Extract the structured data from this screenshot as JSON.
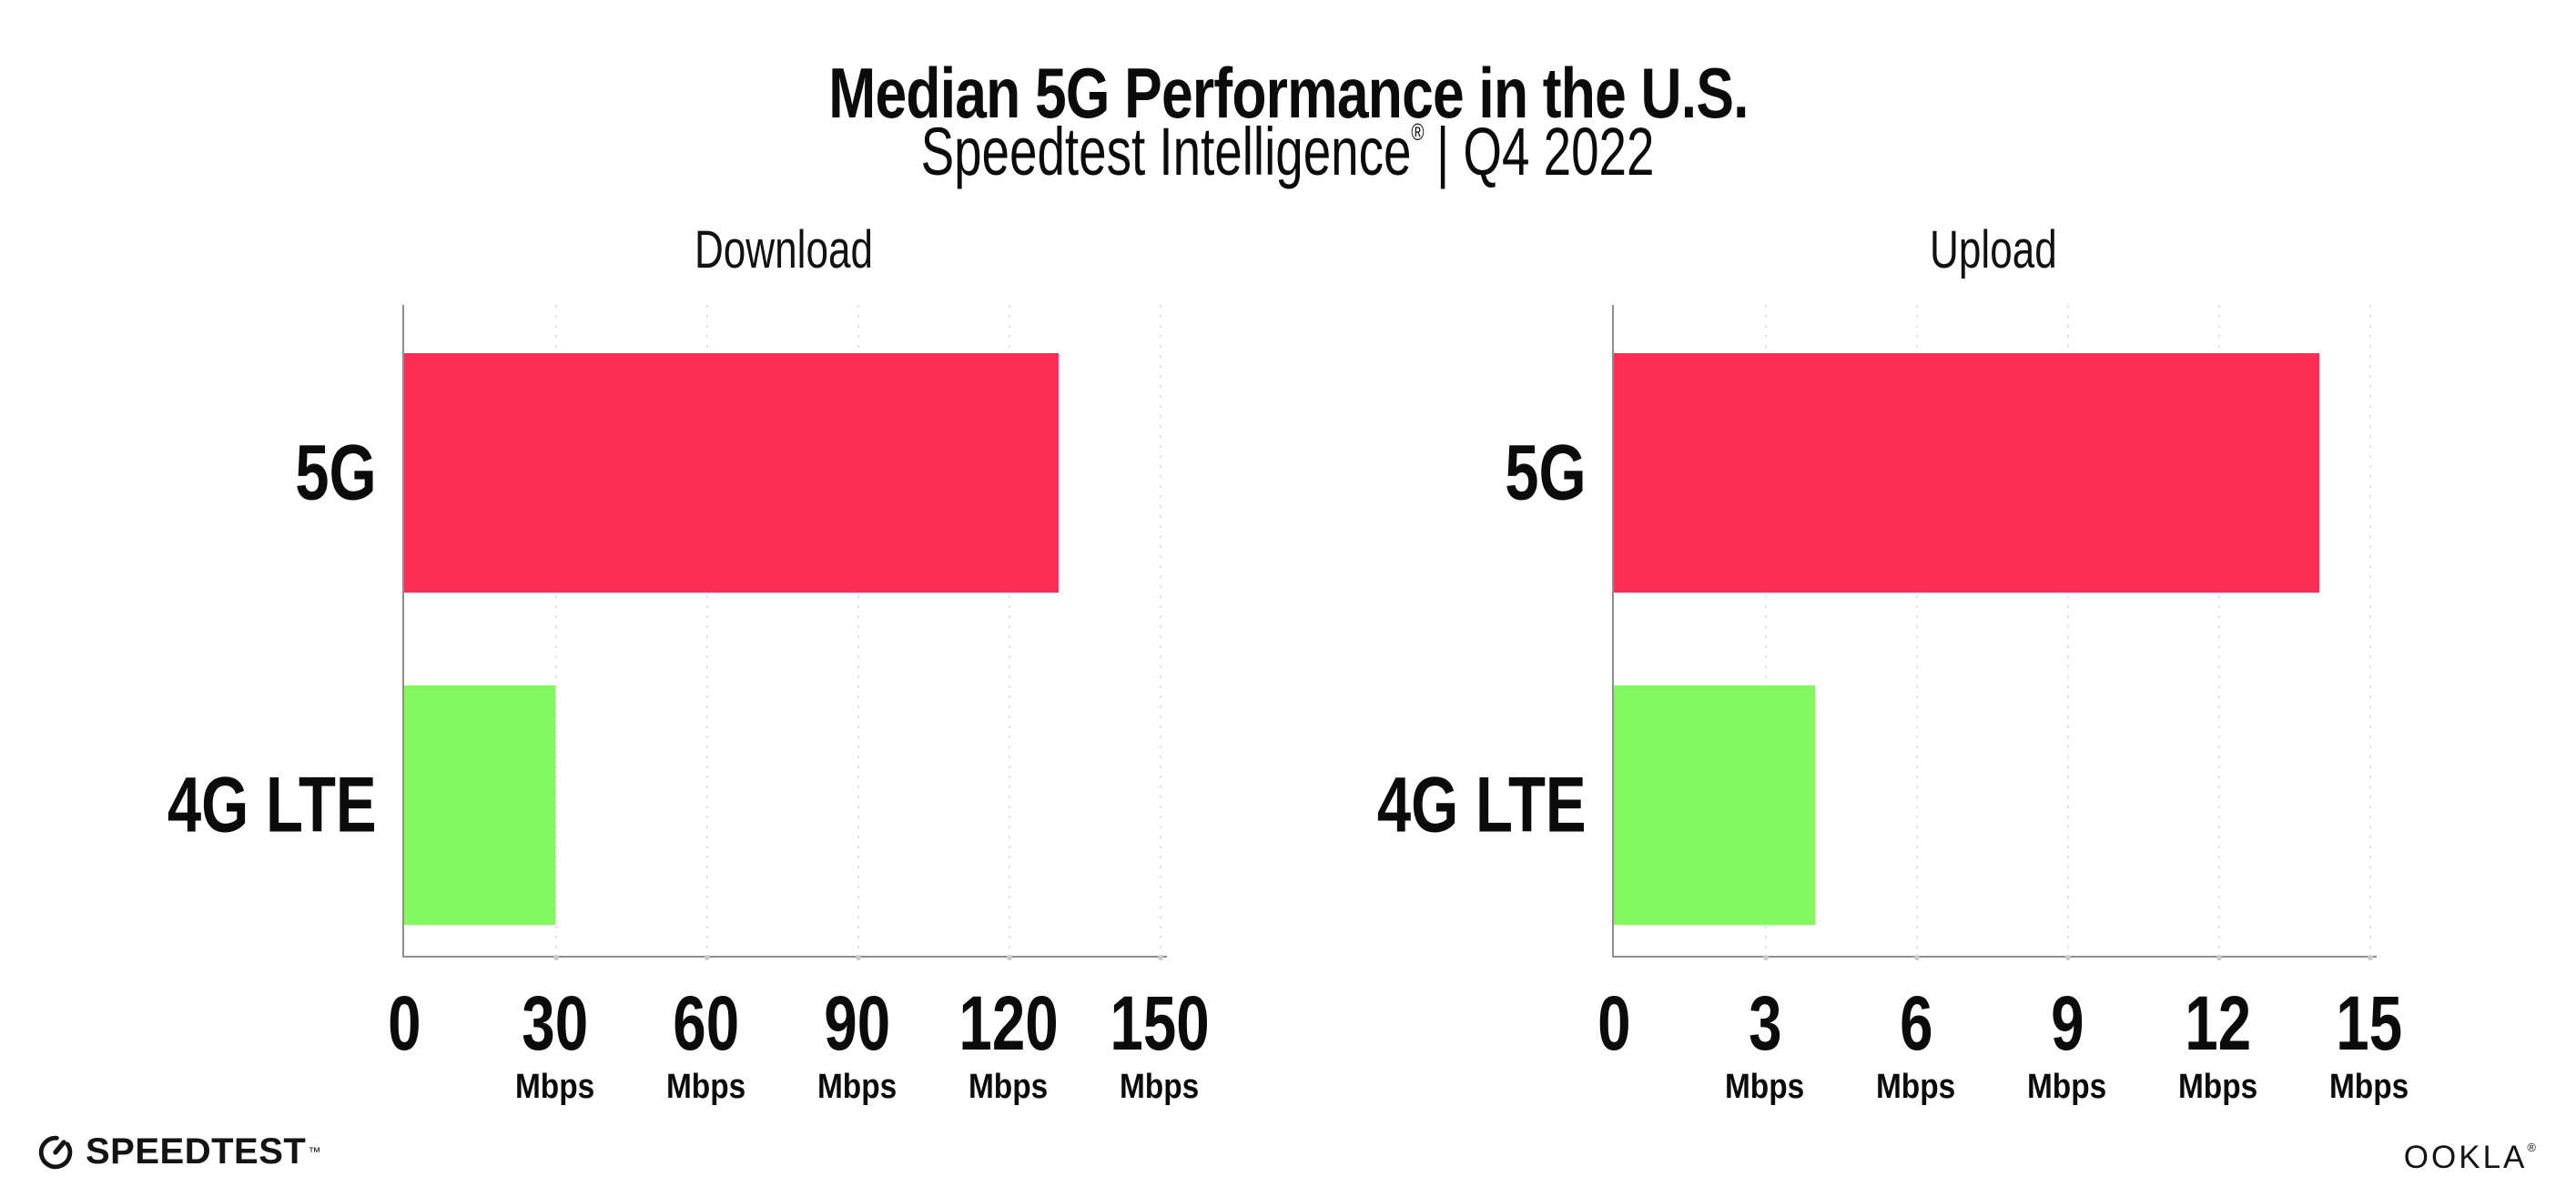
{
  "header": {
    "title": "Median 5G Performance in the U.S.",
    "subtitle_product": "Speedtest Intelligence",
    "subtitle_reg": "®",
    "subtitle_period": "| Q4 2022"
  },
  "chart_data": [
    {
      "type": "bar",
      "orientation": "horizontal",
      "title": "Download",
      "categories": [
        "5G",
        "4G LTE"
      ],
      "values": [
        130,
        30
      ],
      "value_unit": "Mbps",
      "xlim": [
        0,
        150
      ],
      "xticks": [
        0,
        30,
        60,
        90,
        120,
        150
      ],
      "tick_unit_label": "Mbps",
      "bar_colors": [
        "#fd2e56",
        "#81fa62"
      ],
      "grid": "dotted-vertical",
      "legend": "none"
    },
    {
      "type": "bar",
      "orientation": "horizontal",
      "title": "Upload",
      "categories": [
        "5G",
        "4G LTE"
      ],
      "values": [
        14,
        4
      ],
      "value_unit": "Mbps",
      "xlim": [
        0,
        15
      ],
      "xticks": [
        0,
        3,
        6,
        9,
        12,
        15
      ],
      "tick_unit_label": "Mbps",
      "bar_colors": [
        "#fd2e56",
        "#81fa62"
      ],
      "grid": "dotted-vertical",
      "legend": "none"
    }
  ],
  "footer": {
    "speedtest_label": "SPEEDTEST",
    "speedtest_tm": "™",
    "speedtest_icon": "gauge-icon",
    "ookla_label": "OOKLA",
    "ookla_reg": "®"
  },
  "colors": {
    "bar_5g": "#fd2e56",
    "bar_4g_lte": "#81fa62",
    "axis": "#8e8e8e",
    "gridline": "#e2e2ea",
    "text": "#0b0b0b"
  }
}
